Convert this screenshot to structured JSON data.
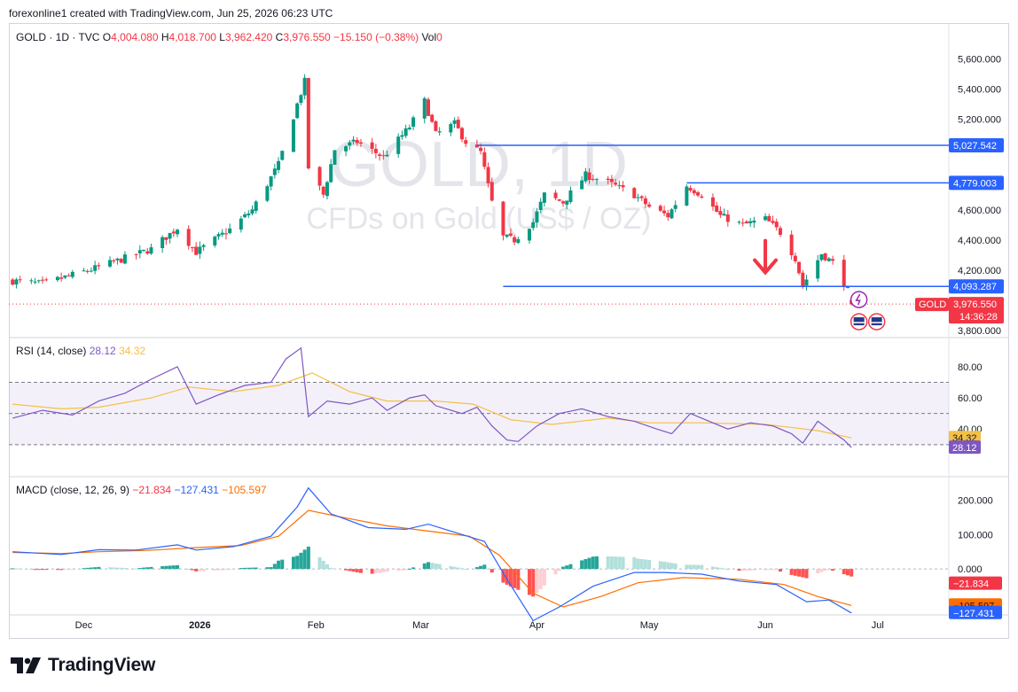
{
  "header": {
    "credit": "forexonline1 created with TradingView.com, Jun 25, 2026 06:23 UTC"
  },
  "footer": {
    "brand": "TradingView"
  },
  "colors": {
    "up": "#089981",
    "down": "#f23645",
    "blue_line": "#2962ff",
    "rsi": "#7e57c2",
    "rsi_ma": "#f5c044",
    "macd": "#2962ff",
    "signal": "#ff6d00",
    "hist_up": "#26a69a",
    "hist_up_weak": "#b2dfdb",
    "hist_down": "#ff5252",
    "hist_down_weak": "#ffcdd2"
  },
  "chart_data": [
    {
      "type": "candlestick",
      "legend": {
        "symbol": "GOLD · 1D · TVC",
        "o_label": "O",
        "o": "4,004.080",
        "h_label": "H",
        "h": "4,018.700",
        "l_label": "L",
        "l": "3,962.420",
        "c_label": "C",
        "c": "3,976.550",
        "change": "−15.150 (−0.38%)",
        "vol_label": "Vol",
        "vol": "0"
      },
      "watermark": {
        "title": "GOLD, 1D",
        "subtitle": "CFDs on Gold (US$ / OZ)"
      },
      "y_ticks": [
        "5,600.000",
        "5,400.000",
        "5,200.000",
        "4,600.000",
        "4,400.000",
        "4,200.000",
        "3,800.000"
      ],
      "y_tick_values": [
        5600,
        5400,
        5200,
        4600,
        4400,
        4200,
        3800
      ],
      "ylim": [
        3760,
        5720
      ],
      "x_ticks": [
        {
          "label": "Dec",
          "date": "2025-12-01"
        },
        {
          "label": "2026",
          "date": "2026-01-01"
        },
        {
          "label": "Feb",
          "date": "2026-02-01"
        },
        {
          "label": "Mar",
          "date": "2026-03-01"
        },
        {
          "label": "Apr",
          "date": "2026-04-01"
        },
        {
          "label": "May",
          "date": "2026-05-01"
        },
        {
          "label": "Jun",
          "date": "2026-06-01"
        },
        {
          "label": "Jul",
          "date": "2026-07-01"
        }
      ],
      "x_range": [
        "2025-11-11",
        "2026-07-20"
      ],
      "horizontal_levels": [
        {
          "value": 5027.542,
          "label": "5,027.542",
          "from": "2026-03-16"
        },
        {
          "value": 4779.003,
          "label": "4,779.003",
          "from": "2026-05-11"
        },
        {
          "value": 4093.287,
          "label": "4,093.287",
          "from": "2026-03-23"
        }
      ],
      "current_price": {
        "symbol": "GOLD",
        "value": 3976.55,
        "label": "3,976.550",
        "countdown": "14:36:28"
      },
      "annotations": [
        {
          "type": "down-arrow",
          "date": "2026-06-01",
          "value": 4220
        }
      ],
      "key_points": [
        {
          "date": "2025-11-12",
          "close": 4130
        },
        {
          "date": "2025-11-20",
          "close": 4110
        },
        {
          "date": "2025-12-05",
          "close": 4220
        },
        {
          "date": "2025-12-12",
          "close": 4280
        },
        {
          "date": "2025-12-19",
          "close": 4340
        },
        {
          "date": "2025-12-26",
          "close": 4480
        },
        {
          "date": "2025-12-31",
          "close": 4320
        },
        {
          "date": "2026-01-09",
          "close": 4470
        },
        {
          "date": "2026-01-15",
          "close": 4600
        },
        {
          "date": "2026-01-22",
          "close": 4900
        },
        {
          "date": "2026-01-27",
          "close": 5300
        },
        {
          "date": "2026-01-29",
          "close": 5450
        },
        {
          "date": "2026-01-30",
          "close": 4880
        },
        {
          "date": "2026-02-03",
          "close": 4700
        },
        {
          "date": "2026-02-06",
          "close": 5000
        },
        {
          "date": "2026-02-12",
          "close": 5050
        },
        {
          "date": "2026-02-19",
          "close": 4950
        },
        {
          "date": "2026-02-26",
          "close": 5150
        },
        {
          "date": "2026-03-02",
          "close": 5320
        },
        {
          "date": "2026-03-05",
          "close": 5100
        },
        {
          "date": "2026-03-10",
          "close": 5170
        },
        {
          "date": "2026-03-13",
          "close": 5050
        },
        {
          "date": "2026-03-17",
          "close": 4980
        },
        {
          "date": "2026-03-20",
          "close": 4650
        },
        {
          "date": "2026-03-23",
          "close": 4420
        },
        {
          "date": "2026-03-26",
          "close": 4400
        },
        {
          "date": "2026-03-31",
          "close": 4520
        },
        {
          "date": "2026-04-03",
          "close": 4700
        },
        {
          "date": "2026-04-08",
          "close": 4650
        },
        {
          "date": "2026-04-14",
          "close": 4830
        },
        {
          "date": "2026-04-20",
          "close": 4780
        },
        {
          "date": "2026-04-27",
          "close": 4700
        },
        {
          "date": "2026-05-01",
          "close": 4620
        },
        {
          "date": "2026-05-06",
          "close": 4560
        },
        {
          "date": "2026-05-11",
          "close": 4760
        },
        {
          "date": "2026-05-15",
          "close": 4700
        },
        {
          "date": "2026-05-20",
          "close": 4560
        },
        {
          "date": "2026-05-26",
          "close": 4500
        },
        {
          "date": "2026-06-01",
          "close": 4540
        },
        {
          "date": "2026-06-05",
          "close": 4450
        },
        {
          "date": "2026-06-09",
          "close": 4280
        },
        {
          "date": "2026-06-11",
          "close": 4100
        },
        {
          "date": "2026-06-16",
          "close": 4310
        },
        {
          "date": "2026-06-19",
          "close": 4250
        },
        {
          "date": "2026-06-23",
          "close": 4070
        },
        {
          "date": "2026-06-24",
          "close": 3976.55
        }
      ]
    },
    {
      "type": "line",
      "legend": {
        "name": "RSI (14, close)",
        "rsi_value": "28.12",
        "ma_value": "34.32"
      },
      "y_ticks": [
        "80.00",
        "60.00",
        "40.00"
      ],
      "y_tick_values": [
        80,
        60,
        40
      ],
      "ylim": [
        10,
        97
      ],
      "bands": {
        "upper": 70,
        "middle": 50,
        "lower": 30
      },
      "series": [
        {
          "name": "RSI",
          "last": 28.12,
          "points": [
            [
              "2025-11-12",
              47
            ],
            [
              "2025-11-20",
              52
            ],
            [
              "2025-11-28",
              49
            ],
            [
              "2025-12-05",
              58
            ],
            [
              "2025-12-12",
              63
            ],
            [
              "2025-12-19",
              72
            ],
            [
              "2025-12-26",
              80
            ],
            [
              "2025-12-31",
              56
            ],
            [
              "2026-01-06",
              62
            ],
            [
              "2026-01-13",
              68
            ],
            [
              "2026-01-20",
              70
            ],
            [
              "2026-01-24",
              85
            ],
            [
              "2026-01-28",
              92
            ],
            [
              "2026-01-30",
              48
            ],
            [
              "2026-02-04",
              58
            ],
            [
              "2026-02-10",
              56
            ],
            [
              "2026-02-16",
              60
            ],
            [
              "2026-02-20",
              52
            ],
            [
              "2026-02-26",
              60
            ],
            [
              "2026-03-02",
              62
            ],
            [
              "2026-03-05",
              55
            ],
            [
              "2026-03-12",
              50
            ],
            [
              "2026-03-16",
              54
            ],
            [
              "2026-03-20",
              42
            ],
            [
              "2026-03-24",
              33
            ],
            [
              "2026-03-27",
              32
            ],
            [
              "2026-04-01",
              42
            ],
            [
              "2026-04-07",
              50
            ],
            [
              "2026-04-13",
              53
            ],
            [
              "2026-04-20",
              48
            ],
            [
              "2026-04-27",
              45
            ],
            [
              "2026-05-03",
              40
            ],
            [
              "2026-05-07",
              37
            ],
            [
              "2026-05-12",
              50
            ],
            [
              "2026-05-17",
              45
            ],
            [
              "2026-05-22",
              40
            ],
            [
              "2026-05-28",
              44
            ],
            [
              "2026-06-03",
              42
            ],
            [
              "2026-06-08",
              37
            ],
            [
              "2026-06-11",
              31
            ],
            [
              "2026-06-15",
              45
            ],
            [
              "2026-06-19",
              38
            ],
            [
              "2026-06-22",
              33
            ],
            [
              "2026-06-24",
              28.12
            ]
          ]
        },
        {
          "name": "RSI MA",
          "last": 34.32,
          "points": [
            [
              "2025-11-12",
              56
            ],
            [
              "2025-11-25",
              53
            ],
            [
              "2025-12-05",
              54
            ],
            [
              "2025-12-19",
              60
            ],
            [
              "2025-12-29",
              67
            ],
            [
              "2026-01-10",
              64
            ],
            [
              "2026-01-22",
              68
            ],
            [
              "2026-01-31",
              76
            ],
            [
              "2026-02-10",
              64
            ],
            [
              "2026-02-20",
              58
            ],
            [
              "2026-03-05",
              58
            ],
            [
              "2026-03-15",
              56
            ],
            [
              "2026-03-25",
              46
            ],
            [
              "2026-04-05",
              43
            ],
            [
              "2026-04-20",
              47
            ],
            [
              "2026-05-01",
              44
            ],
            [
              "2026-05-15",
              44
            ],
            [
              "2026-06-01",
              43
            ],
            [
              "2026-06-15",
              39
            ],
            [
              "2026-06-24",
              34.32
            ]
          ]
        }
      ]
    },
    {
      "type": "line",
      "legend": {
        "name": "MACD (close, 12, 26, 9)",
        "hist_value": "−21.834",
        "macd_value": "−127.431",
        "signal_value": "−105.597"
      },
      "y_ticks": [
        "200.000",
        "100.000",
        "0.000"
      ],
      "y_tick_values": [
        200,
        100,
        0
      ],
      "ylim": [
        -200,
        260
      ],
      "series": [
        {
          "name": "MACD",
          "last": -127.431,
          "points": [
            [
              "2025-11-12",
              50
            ],
            [
              "2025-11-25",
              42
            ],
            [
              "2025-12-05",
              56
            ],
            [
              "2025-12-15",
              55
            ],
            [
              "2025-12-26",
              70
            ],
            [
              "2025-12-31",
              55
            ],
            [
              "2026-01-10",
              65
            ],
            [
              "2026-01-20",
              95
            ],
            [
              "2026-01-27",
              180
            ],
            [
              "2026-01-30",
              235
            ],
            [
              "2026-02-05",
              160
            ],
            [
              "2026-02-15",
              120
            ],
            [
              "2026-02-25",
              115
            ],
            [
              "2026-03-03",
              130
            ],
            [
              "2026-03-12",
              100
            ],
            [
              "2026-03-18",
              80
            ],
            [
              "2026-03-24",
              -30
            ],
            [
              "2026-03-31",
              -150
            ],
            [
              "2026-04-07",
              -110
            ],
            [
              "2026-04-16",
              -50
            ],
            [
              "2026-04-27",
              -10
            ],
            [
              "2026-05-05",
              -10
            ],
            [
              "2026-05-15",
              -15
            ],
            [
              "2026-05-25",
              -35
            ],
            [
              "2026-06-04",
              -45
            ],
            [
              "2026-06-12",
              -95
            ],
            [
              "2026-06-18",
              -90
            ],
            [
              "2026-06-24",
              -127.431
            ]
          ]
        },
        {
          "name": "Signal",
          "last": -105.597,
          "points": [
            [
              "2025-11-12",
              48
            ],
            [
              "2025-11-25",
              45
            ],
            [
              "2025-12-05",
              50
            ],
            [
              "2025-12-18",
              54
            ],
            [
              "2025-12-31",
              62
            ],
            [
              "2026-01-12",
              68
            ],
            [
              "2026-01-22",
              95
            ],
            [
              "2026-01-30",
              170
            ],
            [
              "2026-02-08",
              150
            ],
            [
              "2026-02-20",
              125
            ],
            [
              "2026-03-03",
              110
            ],
            [
              "2026-03-14",
              95
            ],
            [
              "2026-03-22",
              40
            ],
            [
              "2026-03-31",
              -70
            ],
            [
              "2026-04-08",
              -110
            ],
            [
              "2026-04-18",
              -80
            ],
            [
              "2026-04-28",
              -40
            ],
            [
              "2026-05-10",
              -25
            ],
            [
              "2026-05-25",
              -30
            ],
            [
              "2026-06-06",
              -45
            ],
            [
              "2026-06-15",
              -80
            ],
            [
              "2026-06-24",
              -105.597
            ]
          ]
        },
        {
          "name": "Histogram",
          "last": -21.834
        }
      ]
    }
  ]
}
